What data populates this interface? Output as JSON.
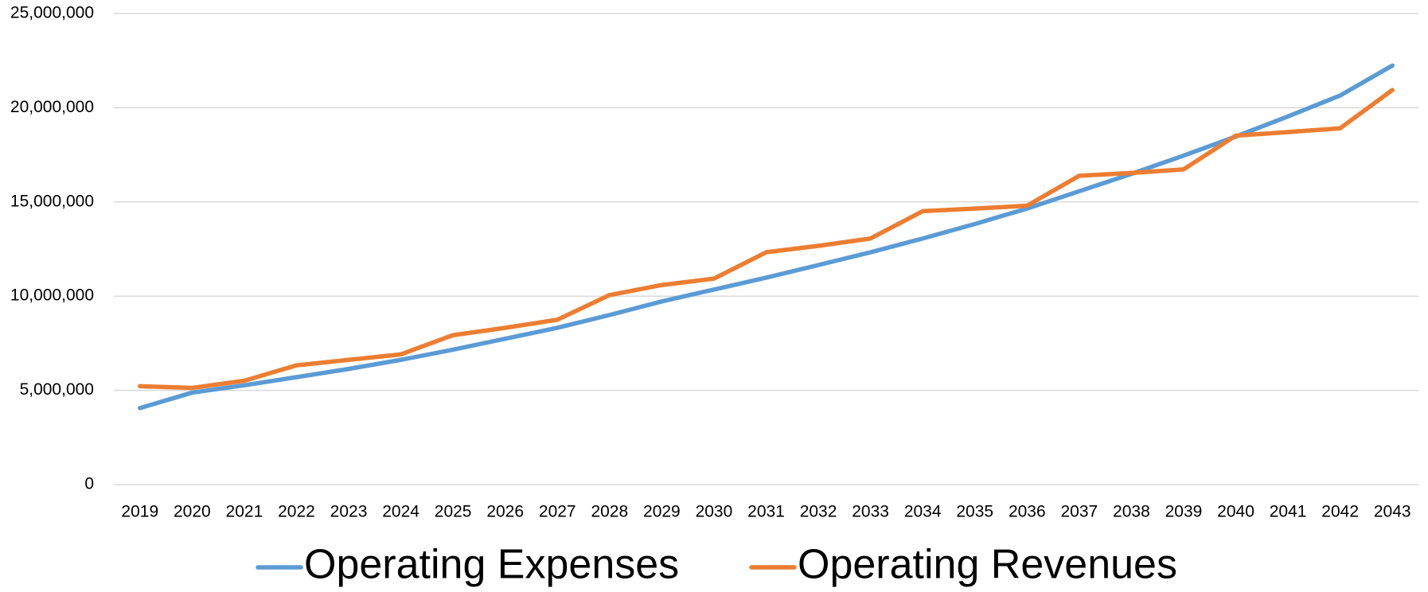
{
  "chart_data": {
    "type": "line",
    "categories": [
      "2019",
      "2020",
      "2021",
      "2022",
      "2023",
      "2024",
      "2025",
      "2026",
      "2027",
      "2028",
      "2029",
      "2030",
      "2031",
      "2032",
      "2033",
      "2034",
      "2035",
      "2036",
      "2037",
      "2038",
      "2039",
      "2040",
      "2041",
      "2042",
      "2043"
    ],
    "series": [
      {
        "name": "Operating Expenses",
        "color": "#5b9bd5",
        "values": [
          4060000,
          4880000,
          5270000,
          5700000,
          6140000,
          6620000,
          7160000,
          7740000,
          8320000,
          9000000,
          9720000,
          10350000,
          10980000,
          11650000,
          12330000,
          13060000,
          13830000,
          14650000,
          15570000,
          16490000,
          17460000,
          18470000,
          19540000,
          20650000,
          22240000
        ]
      },
      {
        "name": "Operating Revenues",
        "color": "#ed7d31",
        "values": [
          5220000,
          5130000,
          5510000,
          6330000,
          6620000,
          6910000,
          7930000,
          8320000,
          8750000,
          10060000,
          10590000,
          10930000,
          12330000,
          12670000,
          13060000,
          14510000,
          14650000,
          14800000,
          16390000,
          16540000,
          16730000,
          18520000,
          18710000,
          18910000,
          20940000
        ]
      }
    ],
    "ylim": [
      0,
      25000000
    ],
    "yticks": [
      0,
      {
        "value": 5000000,
        "label": "5,000,000"
      },
      {
        "value": 10000000,
        "label": "10,000,000"
      },
      {
        "value": 15000000,
        "label": "15,000,000"
      },
      {
        "value": 20000000,
        "label": "20,000,000"
      },
      {
        "value": 25000000,
        "label": "25,000,000"
      }
    ],
    "grid": true,
    "legend": "bottom"
  }
}
